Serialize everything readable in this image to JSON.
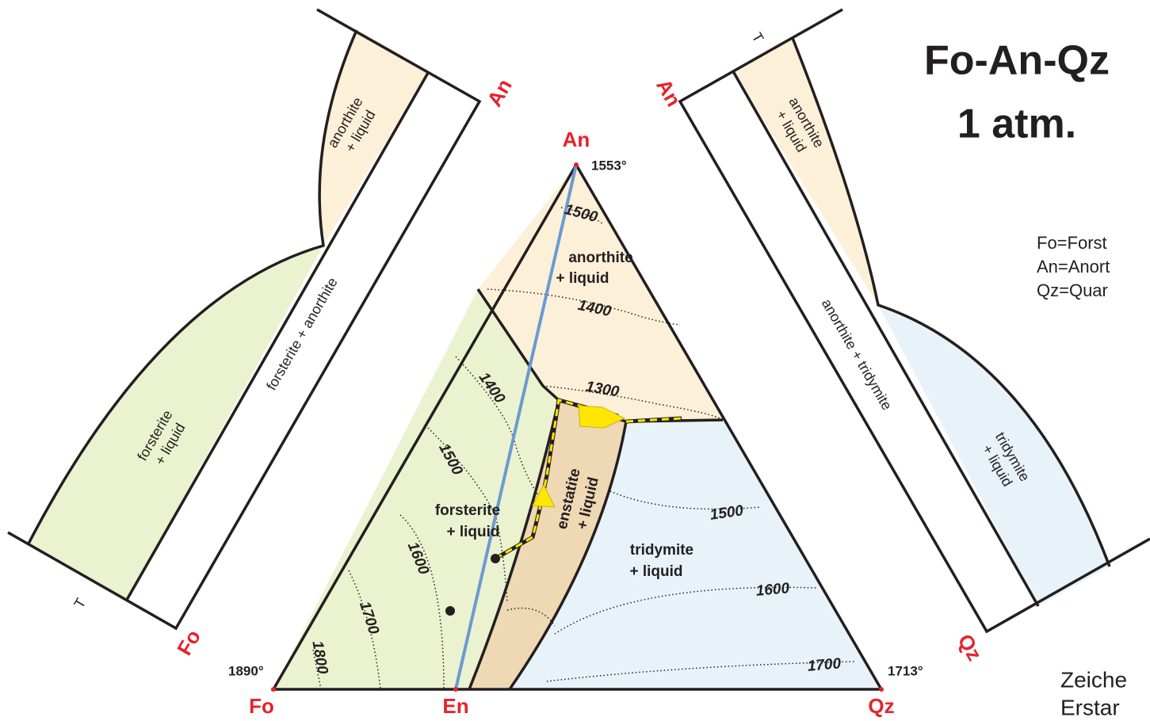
{
  "title": [
    "Fo-An-Qz",
    "1 atm."
  ],
  "legend": [
    "Fo=Forst",
    "An=Anort",
    "Qz=Quar"
  ],
  "footer": [
    "Zeiche",
    "Erstar"
  ],
  "ternary": {
    "vertices": [
      {
        "label": "An",
        "temp": "1553°"
      },
      {
        "label": "Fo",
        "temp": "1890°"
      },
      {
        "label": "Qz",
        "temp": "1713°"
      },
      {
        "label": "En"
      }
    ],
    "fields": [
      [
        "anorthite",
        "+ liquid"
      ],
      [
        "forsterite",
        "+ liquid"
      ],
      [
        "enstatite",
        "+ liquid"
      ],
      [
        "tridymite",
        "+ liquid"
      ]
    ],
    "isotherms": [
      "1500",
      "1400",
      "1300",
      "1400",
      "1500",
      "1600",
      "1700",
      "1800",
      "1500",
      "1600",
      "1700"
    ]
  },
  "left_binary": {
    "axis": "T",
    "top": "An",
    "bottom": "Fo",
    "fields": [
      [
        "anorthite",
        "+ liquid"
      ],
      [
        "forsterite + anorthite"
      ],
      [
        "forsterite",
        "+ liquid"
      ]
    ]
  },
  "right_binary": {
    "axis": "T",
    "top": "An",
    "bottom": "Qz",
    "fields": [
      [
        "anorthite",
        "+ liquid"
      ],
      [
        "anorthite + tridymite"
      ],
      [
        "tridymite",
        "+ liquid"
      ]
    ]
  }
}
